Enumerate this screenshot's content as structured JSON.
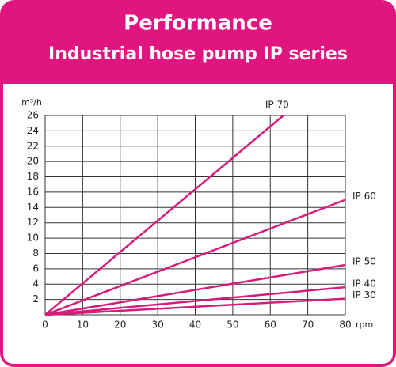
{
  "chart_data": {
    "type": "line",
    "title": "Performance",
    "subtitle": "Industrial hose pump IP series",
    "y_label": "m³/h",
    "x_label": "rpm",
    "xlim": [
      0,
      80
    ],
    "xticks": [
      0,
      10,
      20,
      30,
      40,
      50,
      60,
      70,
      80
    ],
    "ylim": [
      0,
      26
    ],
    "yticks": [
      2,
      4,
      6,
      8,
      10,
      12,
      14,
      16,
      18,
      20,
      22,
      24,
      26
    ],
    "grid": true,
    "series": [
      {
        "name": "IP 70",
        "color": "#d81b7a",
        "x": [
          0,
          63.5
        ],
        "values": [
          0,
          26
        ]
      },
      {
        "name": "IP 60",
        "color": "#d81b7a",
        "x": [
          0,
          80
        ],
        "values": [
          0,
          15
        ]
      },
      {
        "name": "IP 50",
        "color": "#d81b7a",
        "x": [
          0,
          80
        ],
        "values": [
          0,
          6.5
        ]
      },
      {
        "name": "IP 40",
        "color": "#d81b7a",
        "x": [
          0,
          80
        ],
        "values": [
          0,
          3.6
        ]
      },
      {
        "name": "IP 30",
        "color": "#d81b7a",
        "x": [
          0,
          80
        ],
        "values": [
          0,
          2.1
        ]
      }
    ]
  }
}
